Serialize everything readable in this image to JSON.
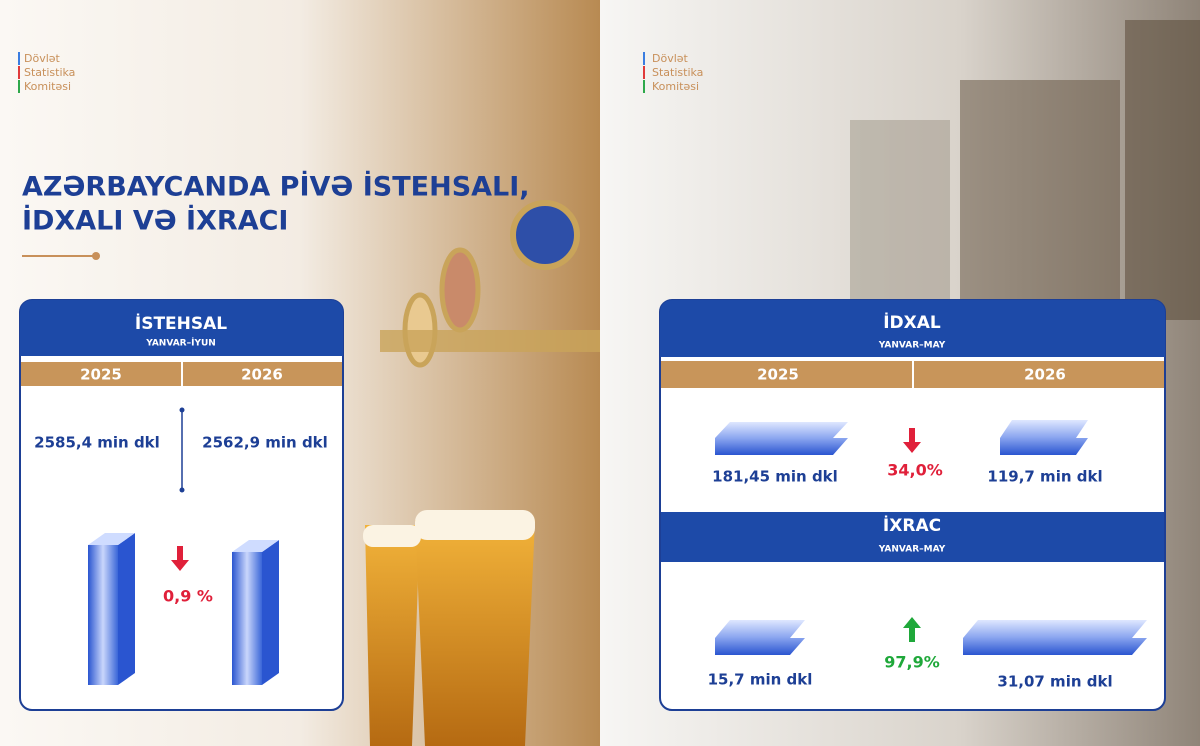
{
  "logo": {
    "lines": [
      "Dövlət",
      "Statistika",
      "Komitəsi"
    ]
  },
  "title": {
    "lines": [
      "AZƏRBAYCANDA PİVƏ İSTEHSALI,",
      "İDXALI VƏ İXRACI"
    ]
  },
  "production": {
    "title": "İSTEHSAL",
    "period": "YANVAR–İYUN",
    "years": [
      "2025",
      "2026"
    ],
    "values": [
      "2585,4 min dkl",
      "2562,9 min dkl"
    ],
    "change": "0,9 %",
    "direction": "down"
  },
  "imports": {
    "title": "İDXAL",
    "period": "YANVAR–MAY",
    "years": [
      "2025",
      "2026"
    ],
    "values": [
      "181,45 min dkl",
      "119,7 min dkl"
    ],
    "change": "34,0%",
    "direction": "down"
  },
  "exports": {
    "title": "İXRAC",
    "period": "YANVAR–MAY",
    "values": [
      "15,7 min dkl",
      "31,07 min dkl"
    ],
    "change": "97,9%",
    "direction": "up"
  }
}
